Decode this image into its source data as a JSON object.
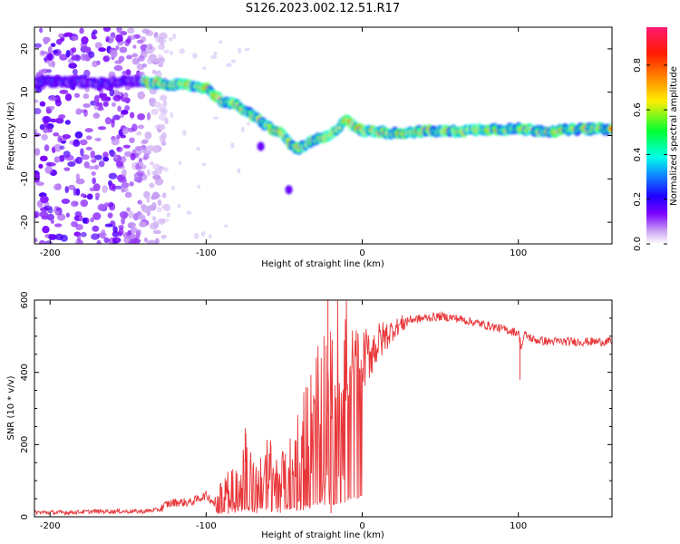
{
  "title": "S126.2023.002.12.51.R17",
  "colorbar": {
    "label": "Normalized spectral amplitude",
    "ticks": [
      "0.0",
      "0.2",
      "0.4",
      "0.6",
      "0.8"
    ],
    "tick_values": [
      0.0,
      0.2,
      0.4,
      0.6,
      0.8
    ],
    "range": [
      0,
      0.97
    ]
  },
  "chart_data": [
    {
      "type": "heatmap",
      "xlabel": "Height of straight line (km)",
      "ylabel": "Frequency (Hz)",
      "xlim": [
        -210,
        160
      ],
      "ylim": [
        -25,
        25
      ],
      "x_ticks": [
        -200,
        -100,
        0,
        100
      ],
      "x_tick_labels": [
        "-200",
        "-100",
        "0",
        "100"
      ],
      "y_ticks": [
        -20,
        -10,
        0,
        10,
        20
      ],
      "y_tick_labels": [
        "-20",
        "-10",
        "0",
        "10",
        "20"
      ],
      "ridge": {
        "x": [
          -210,
          -190,
          -170,
          -150,
          -130,
          -110,
          -100,
          -90,
          -80,
          -70,
          -60,
          -50,
          -45,
          -40,
          -30,
          -20,
          -15,
          -10,
          -5,
          0,
          10,
          20,
          40,
          60,
          80,
          100,
          120,
          140,
          160
        ],
        "y": [
          12.5,
          12.5,
          12,
          12.5,
          12,
          11.5,
          11,
          8,
          7,
          4.5,
          2,
          0,
          -2.5,
          -3,
          -1,
          0,
          2,
          4,
          2,
          1,
          1,
          0.5,
          1,
          1,
          1.5,
          1.5,
          1,
          1.5,
          1.5
        ]
      },
      "secondary_blobs": [
        {
          "x": -65,
          "y": -2.5
        },
        {
          "x": -47,
          "y": -12.5
        }
      ],
      "noise_region_x": [
        -210,
        -135
      ]
    },
    {
      "type": "line",
      "xlabel": "Height of straight line (km)",
      "ylabel": "SNR (10 * v/v)",
      "xlim": [
        -210,
        160
      ],
      "ylim": [
        0,
        600
      ],
      "x_ticks": [
        -200,
        -100,
        0,
        100
      ],
      "x_tick_labels": [
        "-200",
        "-100",
        "0",
        "100"
      ],
      "y_ticks": [
        0,
        200,
        400,
        600
      ],
      "y_tick_labels": [
        "0",
        "200",
        "400",
        "600"
      ],
      "series": [
        {
          "color": "#e8373a",
          "x": [
            -210,
            -190,
            -170,
            -150,
            -140,
            -130,
            -125,
            -120,
            -110,
            -100,
            -95,
            -90,
            -85,
            -80,
            -75,
            -70,
            -65,
            -60,
            -55,
            -50,
            -45,
            -40,
            -35,
            -30,
            -25,
            -20,
            -15,
            -10,
            -5,
            0,
            10,
            20,
            30,
            40,
            50,
            60,
            70,
            80,
            90,
            100,
            102,
            104,
            110,
            120,
            140,
            160
          ],
          "y": [
            12,
            12,
            15,
            15,
            15,
            20,
            35,
            40,
            40,
            60,
            40,
            60,
            80,
            100,
            150,
            80,
            90,
            120,
            100,
            100,
            140,
            180,
            200,
            250,
            300,
            280,
            350,
            400,
            420,
            430,
            480,
            520,
            545,
            550,
            555,
            550,
            540,
            530,
            520,
            510,
            470,
            505,
            490,
            485,
            485,
            485
          ],
          "spikes": [
            {
              "x": -22,
              "y": 600
            },
            {
              "x": -20,
              "y": 10
            },
            {
              "x": -75,
              "y": 245
            },
            {
              "x": 101,
              "y": 380
            }
          ]
        }
      ]
    }
  ]
}
